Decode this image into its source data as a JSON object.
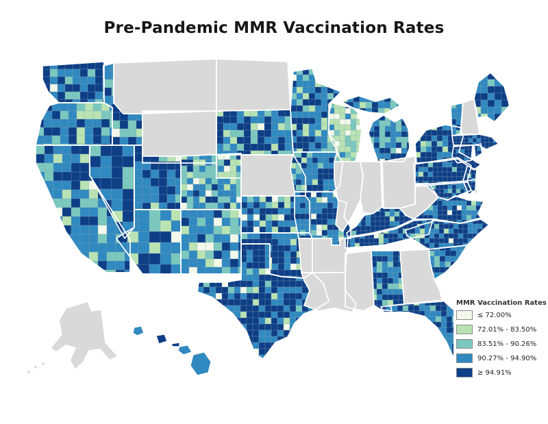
{
  "title": "Pre-Pandemic MMR Vaccination Rates",
  "legend": {
    "title": "MMR Vaccination Rates"
  },
  "map": {
    "no_data_color": "#d9d9d9",
    "state_border_color": "#ffffff",
    "county_border_color": "#8fa6b2",
    "water_background": "#ffffff"
  },
  "chart_data": {
    "type": "choropleth",
    "geography": "United States counties (Alaska and Hawaii inset)",
    "title": "Pre-Pandemic MMR Vaccination Rates",
    "legend_title": "MMR Vaccination Rates",
    "bins": [
      {
        "label": "≤ 72.00%",
        "color": "#f2f9ea"
      },
      {
        "label": "72.01% - 83.50%",
        "color": "#b9e3b3"
      },
      {
        "label": "83.51% - 90.26%",
        "color": "#7bc8bf"
      },
      {
        "label": "90.27% - 94.90%",
        "color": "#3089c0"
      },
      {
        "label": "≥ 94.91%",
        "color": "#0d3e86"
      }
    ],
    "no_data_states": [
      {
        "id": "MT",
        "name": "Montana"
      },
      {
        "id": "WY",
        "name": "Wyoming"
      },
      {
        "id": "ND",
        "name": "North Dakota"
      },
      {
        "id": "NE",
        "name": "Nebraska"
      },
      {
        "id": "IL",
        "name": "Illinois"
      },
      {
        "id": "IN",
        "name": "Indiana"
      },
      {
        "id": "OH",
        "name": "Ohio"
      },
      {
        "id": "WV",
        "name": "West Virginia"
      },
      {
        "id": "MS",
        "name": "Mississippi"
      },
      {
        "id": "LA",
        "name": "Louisiana"
      },
      {
        "id": "AR",
        "name": "Arkansas"
      },
      {
        "id": "GA",
        "name": "Georgia"
      },
      {
        "id": "NH",
        "name": "New Hampshire"
      },
      {
        "id": "DE",
        "name": "Delaware"
      },
      {
        "id": "AK",
        "name": "Alaska"
      }
    ],
    "states": [
      {
        "id": "WA",
        "name": "Washington",
        "bin_shares": [
          0.02,
          0.06,
          0.17,
          0.3,
          0.45
        ]
      },
      {
        "id": "OR",
        "name": "Oregon",
        "bin_shares": [
          0.02,
          0.08,
          0.24,
          0.41,
          0.25
        ]
      },
      {
        "id": "CA",
        "name": "California",
        "bin_shares": [
          0.05,
          0.11,
          0.17,
          0.42,
          0.25
        ]
      },
      {
        "id": "NV",
        "name": "Nevada",
        "bin_shares": [
          0.02,
          0.02,
          0.08,
          0.28,
          0.6
        ]
      },
      {
        "id": "ID",
        "name": "Idaho",
        "bin_shares": [
          0.03,
          0.08,
          0.18,
          0.44,
          0.27
        ]
      },
      {
        "id": "UT",
        "name": "Utah",
        "bin_shares": [
          0.06,
          0.06,
          0.1,
          0.33,
          0.45
        ]
      },
      {
        "id": "AZ",
        "name": "Arizona",
        "bin_shares": [
          0.02,
          0.08,
          0.05,
          0.65,
          0.2
        ]
      },
      {
        "id": "NM",
        "name": "New Mexico",
        "bin_shares": [
          0.1,
          0.08,
          0.2,
          0.45,
          0.17
        ]
      },
      {
        "id": "CO",
        "name": "Colorado",
        "bin_shares": [
          0.13,
          0.18,
          0.3,
          0.28,
          0.11
        ]
      },
      {
        "id": "SD",
        "name": "South Dakota",
        "bin_shares": [
          0.02,
          0.08,
          0.14,
          0.34,
          0.42
        ]
      },
      {
        "id": "KS",
        "name": "Kansas",
        "bin_shares": [
          0.05,
          0.07,
          0.05,
          0.47,
          0.36
        ]
      },
      {
        "id": "OK",
        "name": "Oklahoma",
        "bin_shares": [
          0.05,
          0.05,
          0.04,
          0.36,
          0.5
        ]
      },
      {
        "id": "TX",
        "name": "Texas",
        "bin_shares": [
          0.03,
          0.03,
          0.04,
          0.28,
          0.62
        ]
      },
      {
        "id": "MN",
        "name": "Minnesota",
        "bin_shares": [
          0.03,
          0.09,
          0.1,
          0.46,
          0.32
        ]
      },
      {
        "id": "IA",
        "name": "Iowa",
        "bin_shares": [
          0.02,
          0.09,
          0.13,
          0.42,
          0.34
        ]
      },
      {
        "id": "MO",
        "name": "Missouri",
        "bin_shares": [
          0.05,
          0.06,
          0.08,
          0.48,
          0.33
        ]
      },
      {
        "id": "WI",
        "name": "Wisconsin",
        "bin_shares": [
          0.22,
          0.55,
          0.15,
          0.06,
          0.02
        ]
      },
      {
        "id": "MI",
        "name": "Michigan",
        "bin_shares": [
          0.02,
          0.09,
          0.24,
          0.44,
          0.21
        ]
      },
      {
        "id": "KY",
        "name": "Kentucky",
        "bin_shares": [
          0.02,
          0.07,
          0.08,
          0.19,
          0.64
        ]
      },
      {
        "id": "TN",
        "name": "Tennessee",
        "bin_shares": [
          0.02,
          0.05,
          0.07,
          0.24,
          0.62
        ]
      },
      {
        "id": "AL",
        "name": "Alabama",
        "bin_shares": [
          0.02,
          0.05,
          0.09,
          0.36,
          0.48
        ]
      },
      {
        "id": "FL",
        "name": "Florida",
        "bin_shares": [
          0.01,
          0.02,
          0.07,
          0.54,
          0.36
        ]
      },
      {
        "id": "SC",
        "name": "South Carolina",
        "bin_shares": [
          0.01,
          0.02,
          0.05,
          0.52,
          0.4
        ]
      },
      {
        "id": "NC",
        "name": "North Carolina",
        "bin_shares": [
          0.01,
          0.04,
          0.06,
          0.29,
          0.6
        ]
      },
      {
        "id": "VA",
        "name": "Virginia",
        "bin_shares": [
          0.02,
          0.04,
          0.06,
          0.32,
          0.56
        ]
      },
      {
        "id": "MD",
        "name": "Maryland",
        "bin_shares": [
          0.0,
          0.02,
          0.04,
          0.27,
          0.67
        ]
      },
      {
        "id": "PA",
        "name": "Pennsylvania",
        "bin_shares": [
          0.02,
          0.03,
          0.04,
          0.16,
          0.75
        ]
      },
      {
        "id": "NY",
        "name": "New York",
        "bin_shares": [
          0.03,
          0.07,
          0.09,
          0.21,
          0.6
        ]
      },
      {
        "id": "NJ",
        "name": "New Jersey",
        "bin_shares": [
          0.0,
          0.0,
          0.02,
          0.16,
          0.82
        ]
      },
      {
        "id": "VT",
        "name": "Vermont",
        "bin_shares": [
          0.0,
          0.04,
          0.16,
          0.55,
          0.25
        ]
      },
      {
        "id": "ME",
        "name": "Maine",
        "bin_shares": [
          0.0,
          0.02,
          0.08,
          0.44,
          0.46
        ]
      },
      {
        "id": "MA",
        "name": "Massachusetts",
        "bin_shares": [
          0.0,
          0.0,
          0.04,
          0.24,
          0.72
        ]
      },
      {
        "id": "CT",
        "name": "Connecticut",
        "bin_shares": [
          0.0,
          0.0,
          0.0,
          0.2,
          0.8
        ]
      },
      {
        "id": "RI",
        "name": "Rhode Island",
        "bin_shares": [
          0.0,
          0.0,
          0.0,
          0.1,
          0.9
        ]
      }
    ],
    "hawaii_island_bins": {
      "Kauai": 3,
      "Oahu": 4,
      "Molokai": 4,
      "Maui": 3,
      "Hawaii": 3
    }
  }
}
